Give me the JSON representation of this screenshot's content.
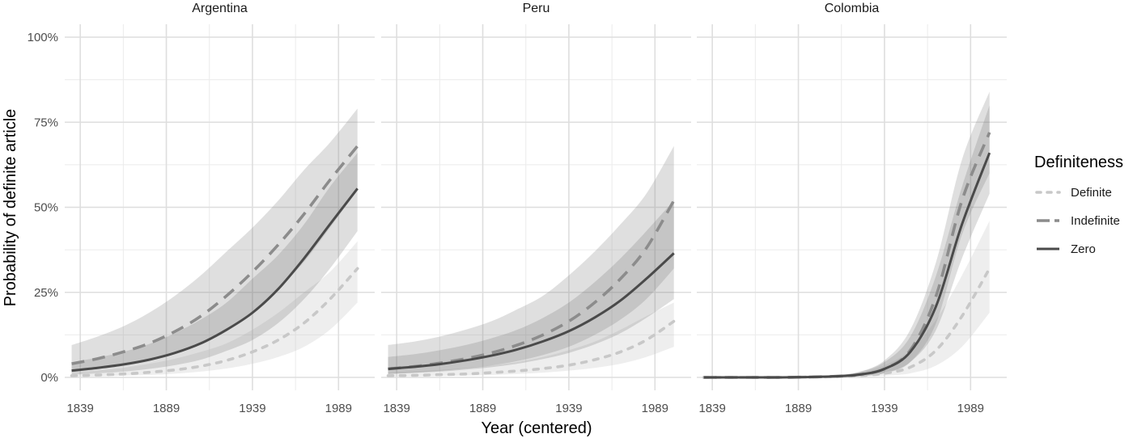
{
  "chart_data": {
    "type": "line",
    "xlabel": "Year (centered)",
    "ylabel": "Probability of definite article",
    "x_ticks": [
      1839,
      1889,
      1939,
      1989
    ],
    "xlim": [
      1830,
      2010
    ],
    "y_ticks": [
      0,
      0.25,
      0.5,
      0.75,
      1.0
    ],
    "y_tick_labels": [
      "0%",
      "25%",
      "50%",
      "75%",
      "100%"
    ],
    "ylim": [
      0,
      1.0
    ],
    "grid": true,
    "legend": {
      "title": "Definiteness",
      "placement": "right",
      "entries": [
        {
          "name": "Definite",
          "color": "#c8c8c8",
          "dash": "dotted"
        },
        {
          "name": "Indefinite",
          "color": "#8c8c8c",
          "dash": "dashed"
        },
        {
          "name": "Zero",
          "color": "#4a4a4a",
          "dash": "solid"
        }
      ]
    },
    "x": [
      1834,
      1849,
      1864,
      1879,
      1894,
      1909,
      1924,
      1939,
      1954,
      1969,
      1984,
      2000
    ],
    "panels": [
      {
        "title": "Argentina",
        "series": [
          {
            "name": "Definite",
            "values": [
              0.005,
              0.007,
              0.01,
              0.015,
              0.022,
              0.033,
              0.05,
              0.075,
              0.11,
              0.16,
              0.23,
              0.32
            ],
            "lower": [
              0.002,
              0.003,
              0.005,
              0.007,
              0.011,
              0.017,
              0.026,
              0.04,
              0.06,
              0.09,
              0.14,
              0.22
            ],
            "upper": [
              0.015,
              0.02,
              0.028,
              0.04,
              0.055,
              0.075,
              0.1,
              0.14,
              0.19,
              0.25,
              0.31,
              0.4
            ]
          },
          {
            "name": "Indefinite",
            "values": [
              0.04,
              0.055,
              0.075,
              0.1,
              0.135,
              0.18,
              0.24,
              0.31,
              0.39,
              0.48,
              0.58,
              0.68
            ],
            "lower": [
              0.015,
              0.025,
              0.035,
              0.05,
              0.07,
              0.1,
              0.14,
              0.19,
              0.26,
              0.34,
              0.44,
              0.55
            ],
            "upper": [
              0.095,
              0.12,
              0.15,
              0.19,
              0.24,
              0.3,
              0.37,
              0.44,
              0.52,
              0.61,
              0.69,
              0.79
            ]
          },
          {
            "name": "Zero",
            "values": [
              0.02,
              0.028,
              0.038,
              0.052,
              0.072,
              0.1,
              0.14,
              0.19,
              0.26,
              0.35,
              0.45,
              0.555
            ],
            "lower": [
              0.008,
              0.012,
              0.017,
              0.025,
              0.036,
              0.052,
              0.078,
              0.11,
              0.16,
              0.23,
              0.32,
              0.43
            ],
            "upper": [
              0.045,
              0.058,
              0.075,
              0.098,
              0.13,
              0.17,
              0.22,
              0.29,
              0.36,
              0.45,
              0.56,
              0.66
            ]
          }
        ]
      },
      {
        "title": "Peru",
        "series": [
          {
            "name": "Definite",
            "values": [
              0.005,
              0.006,
              0.008,
              0.01,
              0.014,
              0.019,
              0.026,
              0.036,
              0.052,
              0.075,
              0.11,
              0.165
            ],
            "lower": [
              0.002,
              0.003,
              0.004,
              0.005,
              0.007,
              0.01,
              0.014,
              0.02,
              0.028,
              0.04,
              0.06,
              0.09
            ],
            "upper": [
              0.015,
              0.018,
              0.022,
              0.028,
              0.035,
              0.045,
              0.06,
              0.08,
              0.105,
              0.14,
              0.18,
              0.22
            ]
          },
          {
            "name": "Indefinite",
            "values": [
              0.025,
              0.032,
              0.042,
              0.055,
              0.072,
              0.095,
              0.125,
              0.165,
              0.22,
              0.29,
              0.38,
              0.52
            ],
            "lower": [
              0.01,
              0.014,
              0.019,
              0.026,
              0.035,
              0.048,
              0.066,
              0.09,
              0.125,
              0.17,
              0.23,
              0.32
            ],
            "upper": [
              0.095,
              0.105,
              0.12,
              0.14,
              0.165,
              0.2,
              0.24,
              0.3,
              0.37,
              0.45,
              0.54,
              0.68
            ]
          },
          {
            "name": "Zero",
            "values": [
              0.025,
              0.031,
              0.039,
              0.05,
              0.064,
              0.082,
              0.106,
              0.136,
              0.176,
              0.226,
              0.29,
              0.365
            ],
            "lower": [
              0.01,
              0.013,
              0.017,
              0.023,
              0.03,
              0.04,
              0.054,
              0.072,
              0.097,
              0.13,
              0.175,
              0.23
            ],
            "upper": [
              0.06,
              0.068,
              0.08,
              0.095,
              0.115,
              0.14,
              0.175,
              0.22,
              0.28,
              0.35,
              0.43,
              0.52
            ]
          }
        ]
      },
      {
        "title": "Colombia",
        "series": [
          {
            "name": "Definite",
            "values": [
              0.0,
              0.0,
              0.0,
              0.0,
              0.001,
              0.002,
              0.005,
              0.012,
              0.03,
              0.08,
              0.18,
              0.32
            ],
            "lower": [
              0.0,
              0.0,
              0.0,
              0.0,
              0.0,
              0.001,
              0.002,
              0.005,
              0.012,
              0.035,
              0.09,
              0.19
            ],
            "upper": [
              0.0,
              0.0,
              0.0,
              0.001,
              0.003,
              0.006,
              0.014,
              0.035,
              0.08,
              0.17,
              0.3,
              0.46
            ]
          },
          {
            "name": "Indefinite",
            "values": [
              0.0,
              0.0,
              0.0,
              0.0,
              0.001,
              0.003,
              0.008,
              0.025,
              0.08,
              0.24,
              0.52,
              0.72
            ],
            "lower": [
              0.0,
              0.0,
              0.0,
              0.0,
              0.0,
              0.001,
              0.004,
              0.012,
              0.045,
              0.16,
              0.42,
              0.6
            ],
            "upper": [
              0.0,
              0.0,
              0.0,
              0.001,
              0.003,
              0.006,
              0.016,
              0.05,
              0.14,
              0.34,
              0.64,
              0.84
            ]
          },
          {
            "name": "Zero",
            "values": [
              0.0,
              0.0,
              0.0,
              0.0,
              0.001,
              0.003,
              0.008,
              0.025,
              0.075,
              0.21,
              0.45,
              0.66
            ],
            "lower": [
              0.0,
              0.0,
              0.0,
              0.0,
              0.0,
              0.001,
              0.004,
              0.013,
              0.045,
              0.14,
              0.35,
              0.54
            ],
            "upper": [
              0.0,
              0.0,
              0.0,
              0.001,
              0.003,
              0.006,
              0.015,
              0.045,
              0.12,
              0.3,
              0.56,
              0.8
            ]
          }
        ]
      }
    ]
  }
}
